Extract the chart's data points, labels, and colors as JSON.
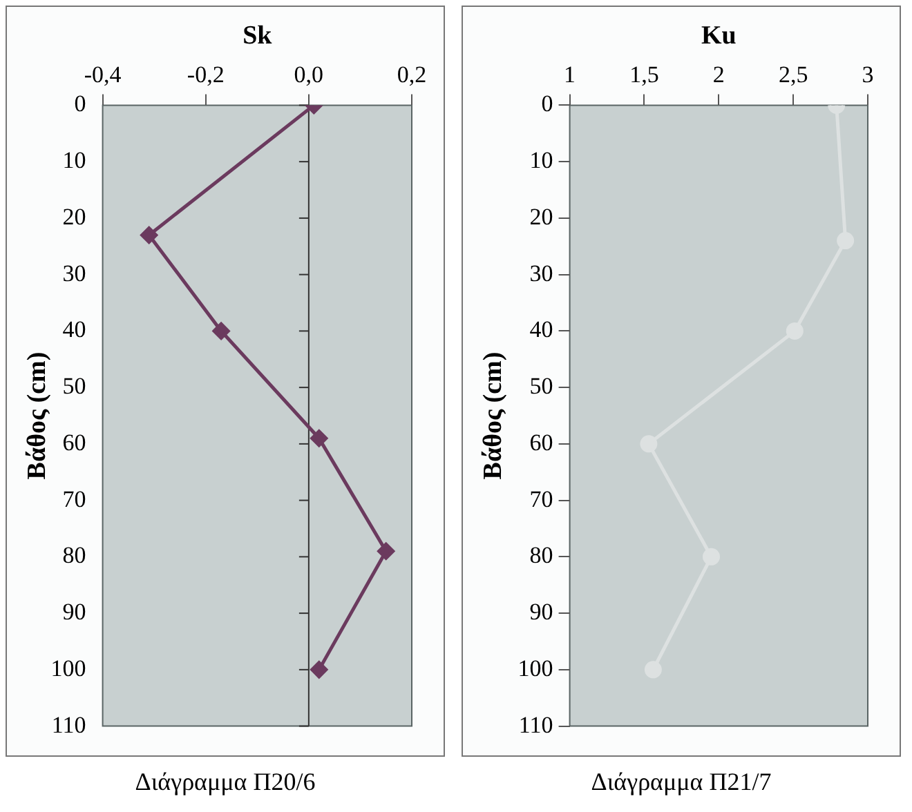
{
  "chart_data": [
    {
      "type": "line",
      "xlabel": "Sk",
      "ylabel": "Βάθος (cm)",
      "annotations": [
        "Διάγραμμα Π20/6"
      ],
      "xlim": [
        -0.4,
        0.2
      ],
      "xticks": [
        {
          "value": -0.4,
          "label": "-0,4"
        },
        {
          "value": -0.2,
          "label": "-0,2"
        },
        {
          "value": 0,
          "label": "0,0"
        },
        {
          "value": 0.2,
          "label": "0,2"
        }
      ],
      "ylim": [
        110,
        0
      ],
      "yticks": [
        0,
        10,
        20,
        30,
        40,
        50,
        60,
        70,
        80,
        90,
        100,
        110
      ],
      "grid": false,
      "marker": "diamond",
      "line_style": "solid",
      "ref_lines": [
        {
          "axis": "x",
          "value": 0
        }
      ],
      "series": [
        {
          "color": "#6b3a5e",
          "x": [
            0.01,
            -0.31,
            -0.17,
            0.02,
            0.15,
            0.02
          ],
          "values": [
            0,
            23,
            40,
            59,
            79,
            100
          ]
        }
      ]
    },
    {
      "type": "line",
      "xlabel": "Ku",
      "ylabel": "Βάθος (cm)",
      "annotations": [
        "Διάγραμμα Π21/7"
      ],
      "xlim": [
        1,
        3
      ],
      "xticks": [
        1,
        {
          "value": 1.5,
          "label": "1,5"
        },
        2,
        {
          "value": 2.5,
          "label": "2,5"
        },
        3
      ],
      "ylim": [
        110,
        0
      ],
      "yticks": [
        0,
        10,
        20,
        30,
        40,
        50,
        60,
        70,
        80,
        90,
        100,
        110
      ],
      "grid": false,
      "marker": "circle",
      "line_style": "solid",
      "series": [
        {
          "color": "#dde1e1",
          "x": [
            2.79,
            2.85,
            2.51,
            1.53,
            1.95,
            1.56
          ],
          "values": [
            0,
            24,
            40,
            60,
            80,
            100
          ]
        }
      ]
    }
  ]
}
